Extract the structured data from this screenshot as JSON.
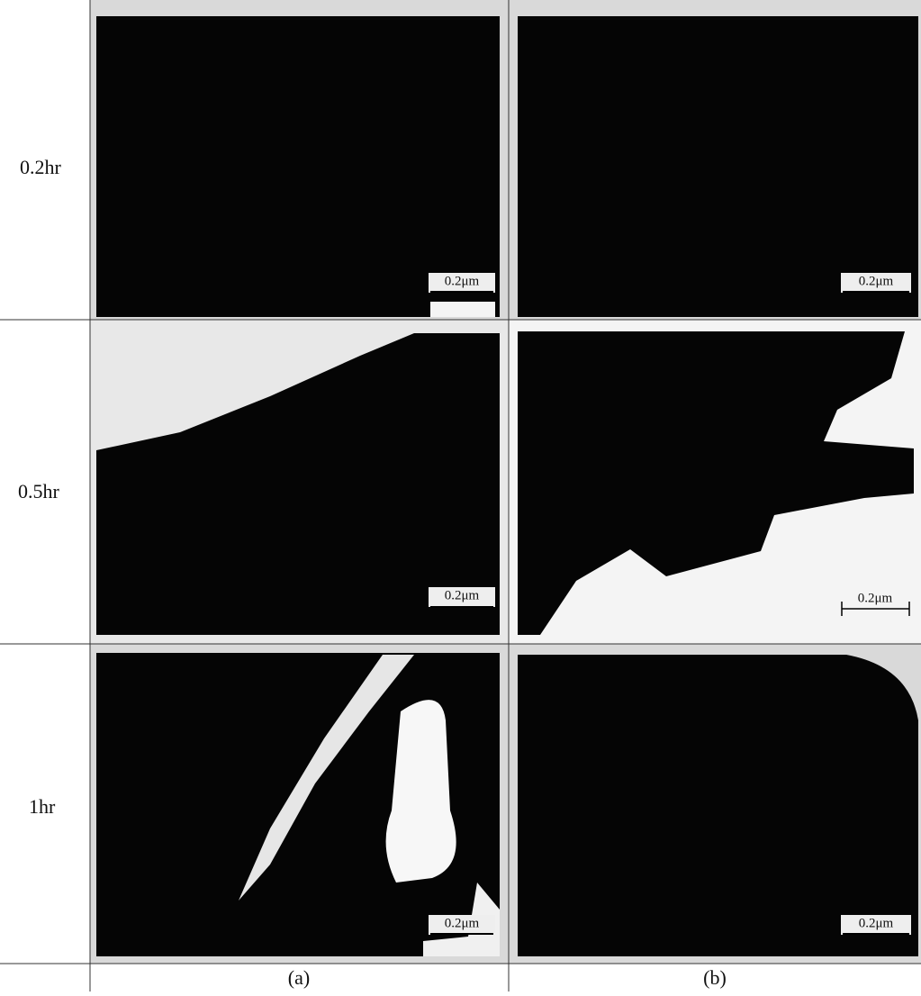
{
  "figure": {
    "rows": [
      {
        "label": "0.2hr",
        "cells": [
          {
            "scale_bar": "0.2μm"
          },
          {
            "scale_bar": "0.2μm"
          }
        ]
      },
      {
        "label": "0.5hr",
        "cells": [
          {
            "scale_bar": "0.2μm"
          },
          {
            "scale_bar": "0.2μm"
          }
        ]
      },
      {
        "label": "1hr",
        "cells": [
          {
            "scale_bar": "0.2μm"
          },
          {
            "scale_bar": "0.2μm"
          }
        ]
      }
    ],
    "columns": [
      "(a)",
      "(b)"
    ]
  }
}
